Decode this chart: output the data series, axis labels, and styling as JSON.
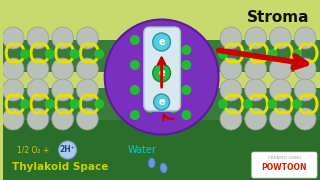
{
  "bg_top": "#c8d96e",
  "bg_bottom": "#2a6e2a",
  "membrane_mid": "#3a7a3a",
  "stroma_text": "Stroma",
  "thylakoid_text": "Thylakoid Space",
  "thylakoid_color": "#c8d400",
  "half_o2_color": "#c8c830",
  "water_text": "Water",
  "water_color": "#00cccc",
  "protein_color": "#7b2fbe",
  "channel_color": "#d8e8f0",
  "electron_cyan_color": "#55ccdd",
  "electron_green_color": "#22bb44",
  "arrow_red": "#cc0000",
  "green_dot": "#22bb33",
  "gray_sphere": "#b8c0b8",
  "yellow_antenna": "#e8e000",
  "bubble_color": "#a8cce8"
}
